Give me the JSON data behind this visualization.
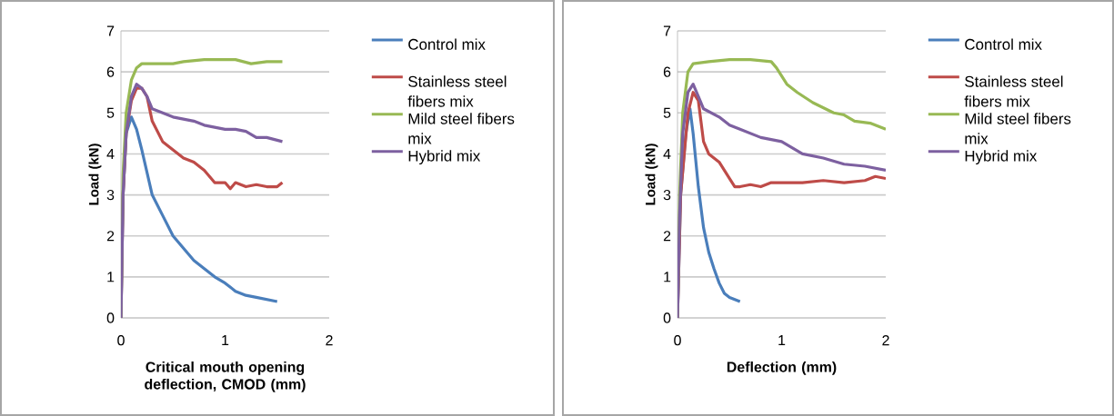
{
  "chart_data": [
    {
      "type": "line",
      "xlabel": "Critical mouth opening deflection, CMOD (mm)",
      "ylabel": "Load (kN)",
      "xlim": [
        0,
        2
      ],
      "ylim": [
        0,
        7
      ],
      "xticks": [
        0,
        1,
        2
      ],
      "yticks": [
        0,
        1,
        2,
        3,
        4,
        5,
        6,
        7
      ],
      "grid": "y",
      "legend": "right",
      "marker": "none",
      "line_style": "solid",
      "series": [
        {
          "name": "Control mix",
          "color": "#4a7ebb",
          "x": [
            0,
            0.02,
            0.05,
            0.1,
            0.15,
            0.2,
            0.3,
            0.4,
            0.5,
            0.6,
            0.7,
            0.8,
            0.9,
            1.0,
            1.1,
            1.2,
            1.3,
            1.5
          ],
          "values": [
            0,
            3,
            4.5,
            4.9,
            4.6,
            4.1,
            3.0,
            2.5,
            2.0,
            1.7,
            1.4,
            1.2,
            1.0,
            0.85,
            0.65,
            0.55,
            0.5,
            0.4
          ]
        },
        {
          "name": "Stainless steel fibers mix",
          "color": "#be4b48",
          "x": [
            0,
            0.02,
            0.05,
            0.1,
            0.15,
            0.2,
            0.25,
            0.3,
            0.4,
            0.5,
            0.6,
            0.7,
            0.8,
            0.9,
            1.0,
            1.05,
            1.1,
            1.2,
            1.3,
            1.4,
            1.5,
            1.55
          ],
          "values": [
            0,
            3,
            4.5,
            5.3,
            5.6,
            5.6,
            5.4,
            4.8,
            4.3,
            4.1,
            3.9,
            3.8,
            3.6,
            3.3,
            3.3,
            3.15,
            3.3,
            3.2,
            3.25,
            3.2,
            3.2,
            3.3
          ]
        },
        {
          "name": "Mild steel fibers mix",
          "color": "#98b954",
          "x": [
            0,
            0.02,
            0.05,
            0.1,
            0.15,
            0.2,
            0.4,
            0.5,
            0.6,
            0.8,
            1.0,
            1.1,
            1.25,
            1.4,
            1.55
          ],
          "values": [
            0,
            3.5,
            5,
            5.8,
            6.1,
            6.2,
            6.2,
            6.2,
            6.25,
            6.3,
            6.3,
            6.3,
            6.2,
            6.25,
            6.25
          ]
        },
        {
          "name": "Hybrid mix",
          "color": "#7d60a0",
          "x": [
            0,
            0.02,
            0.05,
            0.1,
            0.15,
            0.2,
            0.25,
            0.3,
            0.4,
            0.5,
            0.6,
            0.7,
            0.8,
            0.9,
            1.0,
            1.1,
            1.2,
            1.3,
            1.4,
            1.55
          ],
          "values": [
            0,
            3,
            4.5,
            5.4,
            5.7,
            5.6,
            5.4,
            5.1,
            5.0,
            4.9,
            4.85,
            4.8,
            4.7,
            4.65,
            4.6,
            4.6,
            4.55,
            4.4,
            4.4,
            4.3
          ]
        }
      ]
    },
    {
      "type": "line",
      "xlabel": "Deflection (mm)",
      "ylabel": "Load (kN)",
      "xlim": [
        0,
        2
      ],
      "ylim": [
        0,
        7
      ],
      "xticks": [
        0,
        1,
        2
      ],
      "yticks": [
        0,
        1,
        2,
        3,
        4,
        5,
        6,
        7
      ],
      "grid": "y",
      "legend": "right",
      "marker": "none",
      "line_style": "solid",
      "series": [
        {
          "name": "Control mix",
          "color": "#4a7ebb",
          "x": [
            0,
            0.03,
            0.08,
            0.12,
            0.15,
            0.2,
            0.25,
            0.3,
            0.35,
            0.4,
            0.45,
            0.5,
            0.6
          ],
          "values": [
            0,
            3,
            4.5,
            5.1,
            4.5,
            3.2,
            2.2,
            1.6,
            1.2,
            0.85,
            0.6,
            0.5,
            0.4
          ]
        },
        {
          "name": "Stainless steel fibers mix",
          "color": "#be4b48",
          "x": [
            0,
            0.03,
            0.1,
            0.15,
            0.2,
            0.25,
            0.3,
            0.4,
            0.5,
            0.55,
            0.6,
            0.7,
            0.8,
            0.9,
            1.0,
            1.2,
            1.4,
            1.6,
            1.8,
            1.9,
            2.0
          ],
          "values": [
            0,
            3,
            5.0,
            5.5,
            5.3,
            4.3,
            4.0,
            3.8,
            3.4,
            3.2,
            3.2,
            3.25,
            3.2,
            3.3,
            3.3,
            3.3,
            3.35,
            3.3,
            3.35,
            3.45,
            3.4
          ]
        },
        {
          "name": "Mild steel fibers mix",
          "color": "#98b954",
          "x": [
            0,
            0.02,
            0.05,
            0.1,
            0.15,
            0.3,
            0.5,
            0.7,
            0.9,
            0.95,
            1.05,
            1.15,
            1.3,
            1.5,
            1.6,
            1.7,
            1.85,
            2.0
          ],
          "values": [
            0,
            3,
            5,
            6.0,
            6.2,
            6.25,
            6.3,
            6.3,
            6.25,
            6.1,
            5.7,
            5.5,
            5.25,
            5.0,
            4.95,
            4.8,
            4.75,
            4.6
          ]
        },
        {
          "name": "Hybrid mix",
          "color": "#7d60a0",
          "x": [
            0,
            0.02,
            0.05,
            0.1,
            0.15,
            0.2,
            0.25,
            0.4,
            0.5,
            0.6,
            0.8,
            1.0,
            1.2,
            1.4,
            1.6,
            1.8,
            2.0
          ],
          "values": [
            0,
            2.5,
            4.5,
            5.5,
            5.7,
            5.4,
            5.1,
            4.9,
            4.7,
            4.6,
            4.4,
            4.3,
            4.0,
            3.9,
            3.75,
            3.7,
            3.6
          ]
        }
      ]
    }
  ]
}
